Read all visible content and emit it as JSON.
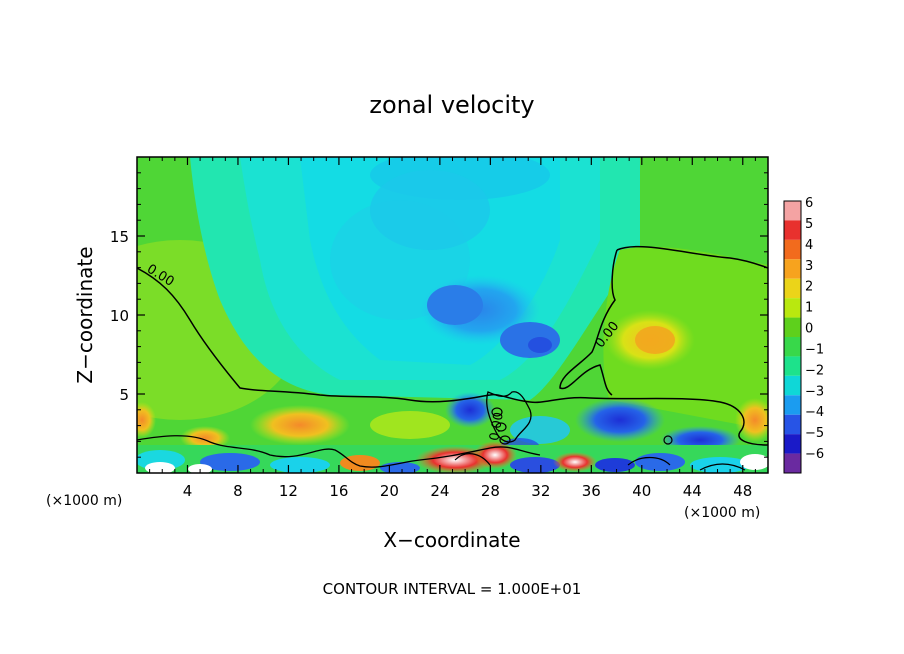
{
  "chart_data": {
    "type": "heatmap",
    "title": "zonal velocity",
    "xlabel": "X−coordinate",
    "ylabel": "Z−coordinate",
    "x_unit_left": "(×1000 m)",
    "x_unit_right": "(×1000 m)",
    "footer": "CONTOUR INTERVAL = 1.000E+01",
    "xlim": [
      0,
      50
    ],
    "ylim": [
      0,
      20
    ],
    "x_ticks": [
      4,
      8,
      12,
      16,
      20,
      24,
      28,
      32,
      36,
      40,
      44,
      48
    ],
    "x_tick_labels": [
      "4",
      "8",
      "12",
      "16",
      "20",
      "24",
      "28",
      "32",
      "36",
      "40",
      "44",
      "48"
    ],
    "y_ticks": [
      5,
      10,
      15
    ],
    "y_tick_labels": [
      "5",
      "10",
      "15"
    ],
    "contour_labels": [
      {
        "text": "0.00",
        "x": 1.7,
        "y": 12.3
      },
      {
        "text": "0.00",
        "x": 37.5,
        "y": 8.6
      },
      {
        "text": "0.00",
        "x": 28.8,
        "y": 2.9
      }
    ],
    "colorbar": {
      "labels": [
        "6",
        "5",
        "4",
        "3",
        "2",
        "1",
        "0",
        "−1",
        "−2",
        "−3",
        "−4",
        "−5",
        "−6"
      ],
      "colors": [
        "#f4a3a3",
        "#e8312e",
        "#f26b1d",
        "#f7a31e",
        "#ebd419",
        "#b9e80f",
        "#5ed01c",
        "#38d84a",
        "#1de28b",
        "#0fd7d7",
        "#1b9cf0",
        "#2754e6",
        "#1a1ac8",
        "#6a2aa0"
      ]
    }
  }
}
